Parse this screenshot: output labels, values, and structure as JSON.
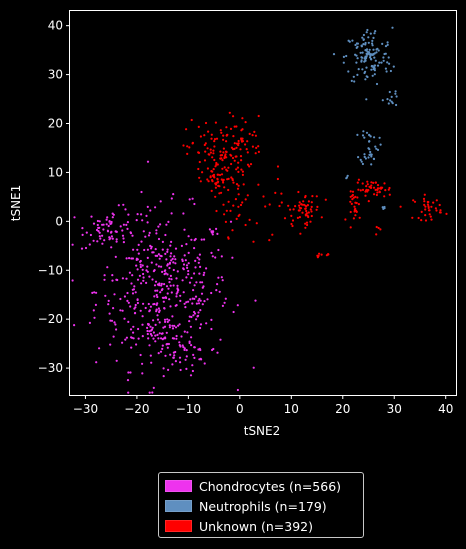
{
  "chart_data": {
    "type": "scatter",
    "xlabel": "tSNE2",
    "ylabel": "tSNE1",
    "xlim": [
      -33,
      42
    ],
    "ylim": [
      -35.5,
      43
    ],
    "xticks": [
      -30,
      -20,
      -10,
      0,
      10,
      20,
      30,
      40
    ],
    "yticks": [
      -30,
      -20,
      -10,
      0,
      10,
      20,
      30,
      40
    ],
    "xtick_labels": [
      "−30",
      "−20",
      "−10",
      "0",
      "10",
      "20",
      "30",
      "40"
    ],
    "ytick_labels": [
      "−30",
      "−20",
      "−10",
      "0",
      "10",
      "20",
      "30",
      "40"
    ],
    "grid": false,
    "legend_position": "below",
    "series": [
      {
        "name": "Chondrocytes (n=566)",
        "color": "#ee33ee",
        "count": 566,
        "clusters": [
          {
            "cx": -15,
            "cy": -14,
            "sx": 6.5,
            "sy": 8,
            "n": 440
          },
          {
            "cx": -25,
            "cy": -1,
            "sx": 2.5,
            "sy": 1.8,
            "n": 60
          },
          {
            "cx": -15,
            "cy": -24,
            "sx": 3,
            "sy": 2.5,
            "n": 40
          },
          {
            "cx": -11,
            "cy": -27,
            "sx": 2.5,
            "sy": 2,
            "n": 26
          }
        ]
      },
      {
        "name": "Neutrophils (n=179)",
        "color": "#5f8fc0",
        "count": 179,
        "clusters": [
          {
            "cx": 25,
            "cy": 33.5,
            "sx": 2.3,
            "sy": 3,
            "n": 125
          },
          {
            "cx": 29.5,
            "cy": 25.5,
            "sx": 0.8,
            "sy": 1.2,
            "n": 12
          },
          {
            "cx": 25.2,
            "cy": 15.5,
            "sx": 0.9,
            "sy": 2,
            "n": 35
          },
          {
            "cx": 27.5,
            "cy": 2.5,
            "sx": 0.6,
            "sy": 0.4,
            "n": 4
          },
          {
            "cx": 21,
            "cy": 9,
            "sx": 0.3,
            "sy": 0.3,
            "n": 3
          }
        ]
      },
      {
        "name": "Unknown (n=392)",
        "color": "#ff0000",
        "count": 392,
        "clusters": [
          {
            "cx": -4,
            "cy": 14,
            "sx": 3.2,
            "sy": 3.5,
            "n": 120
          },
          {
            "cx": -4,
            "cy": 8,
            "sx": 1.6,
            "sy": 1.4,
            "n": 40
          },
          {
            "cx": 1,
            "cy": 17,
            "sx": 1.6,
            "sy": 2.2,
            "n": 20
          },
          {
            "cx": -1,
            "cy": 2,
            "sx": 2,
            "sy": 2.5,
            "n": 25
          },
          {
            "cx": 12.5,
            "cy": 2.5,
            "sx": 1.6,
            "sy": 1.6,
            "n": 55
          },
          {
            "cx": 26,
            "cy": 6.5,
            "sx": 1.8,
            "sy": 0.9,
            "n": 45
          },
          {
            "cx": 22.5,
            "cy": 3,
            "sx": 0.7,
            "sy": 1.5,
            "n": 25
          },
          {
            "cx": 36.5,
            "cy": 2.8,
            "sx": 1.4,
            "sy": 1.2,
            "n": 35
          },
          {
            "cx": 16,
            "cy": -7,
            "sx": 1,
            "sy": 0.2,
            "n": 8
          },
          {
            "cx": 8,
            "cy": 4,
            "sx": 2.5,
            "sy": 3,
            "n": 12
          },
          {
            "cx": 27,
            "cy": -1.5,
            "sx": 0.4,
            "sy": 0.4,
            "n": 4
          },
          {
            "cx": 4,
            "cy": -3,
            "sx": 3,
            "sy": 1,
            "n": 3
          }
        ]
      }
    ]
  }
}
